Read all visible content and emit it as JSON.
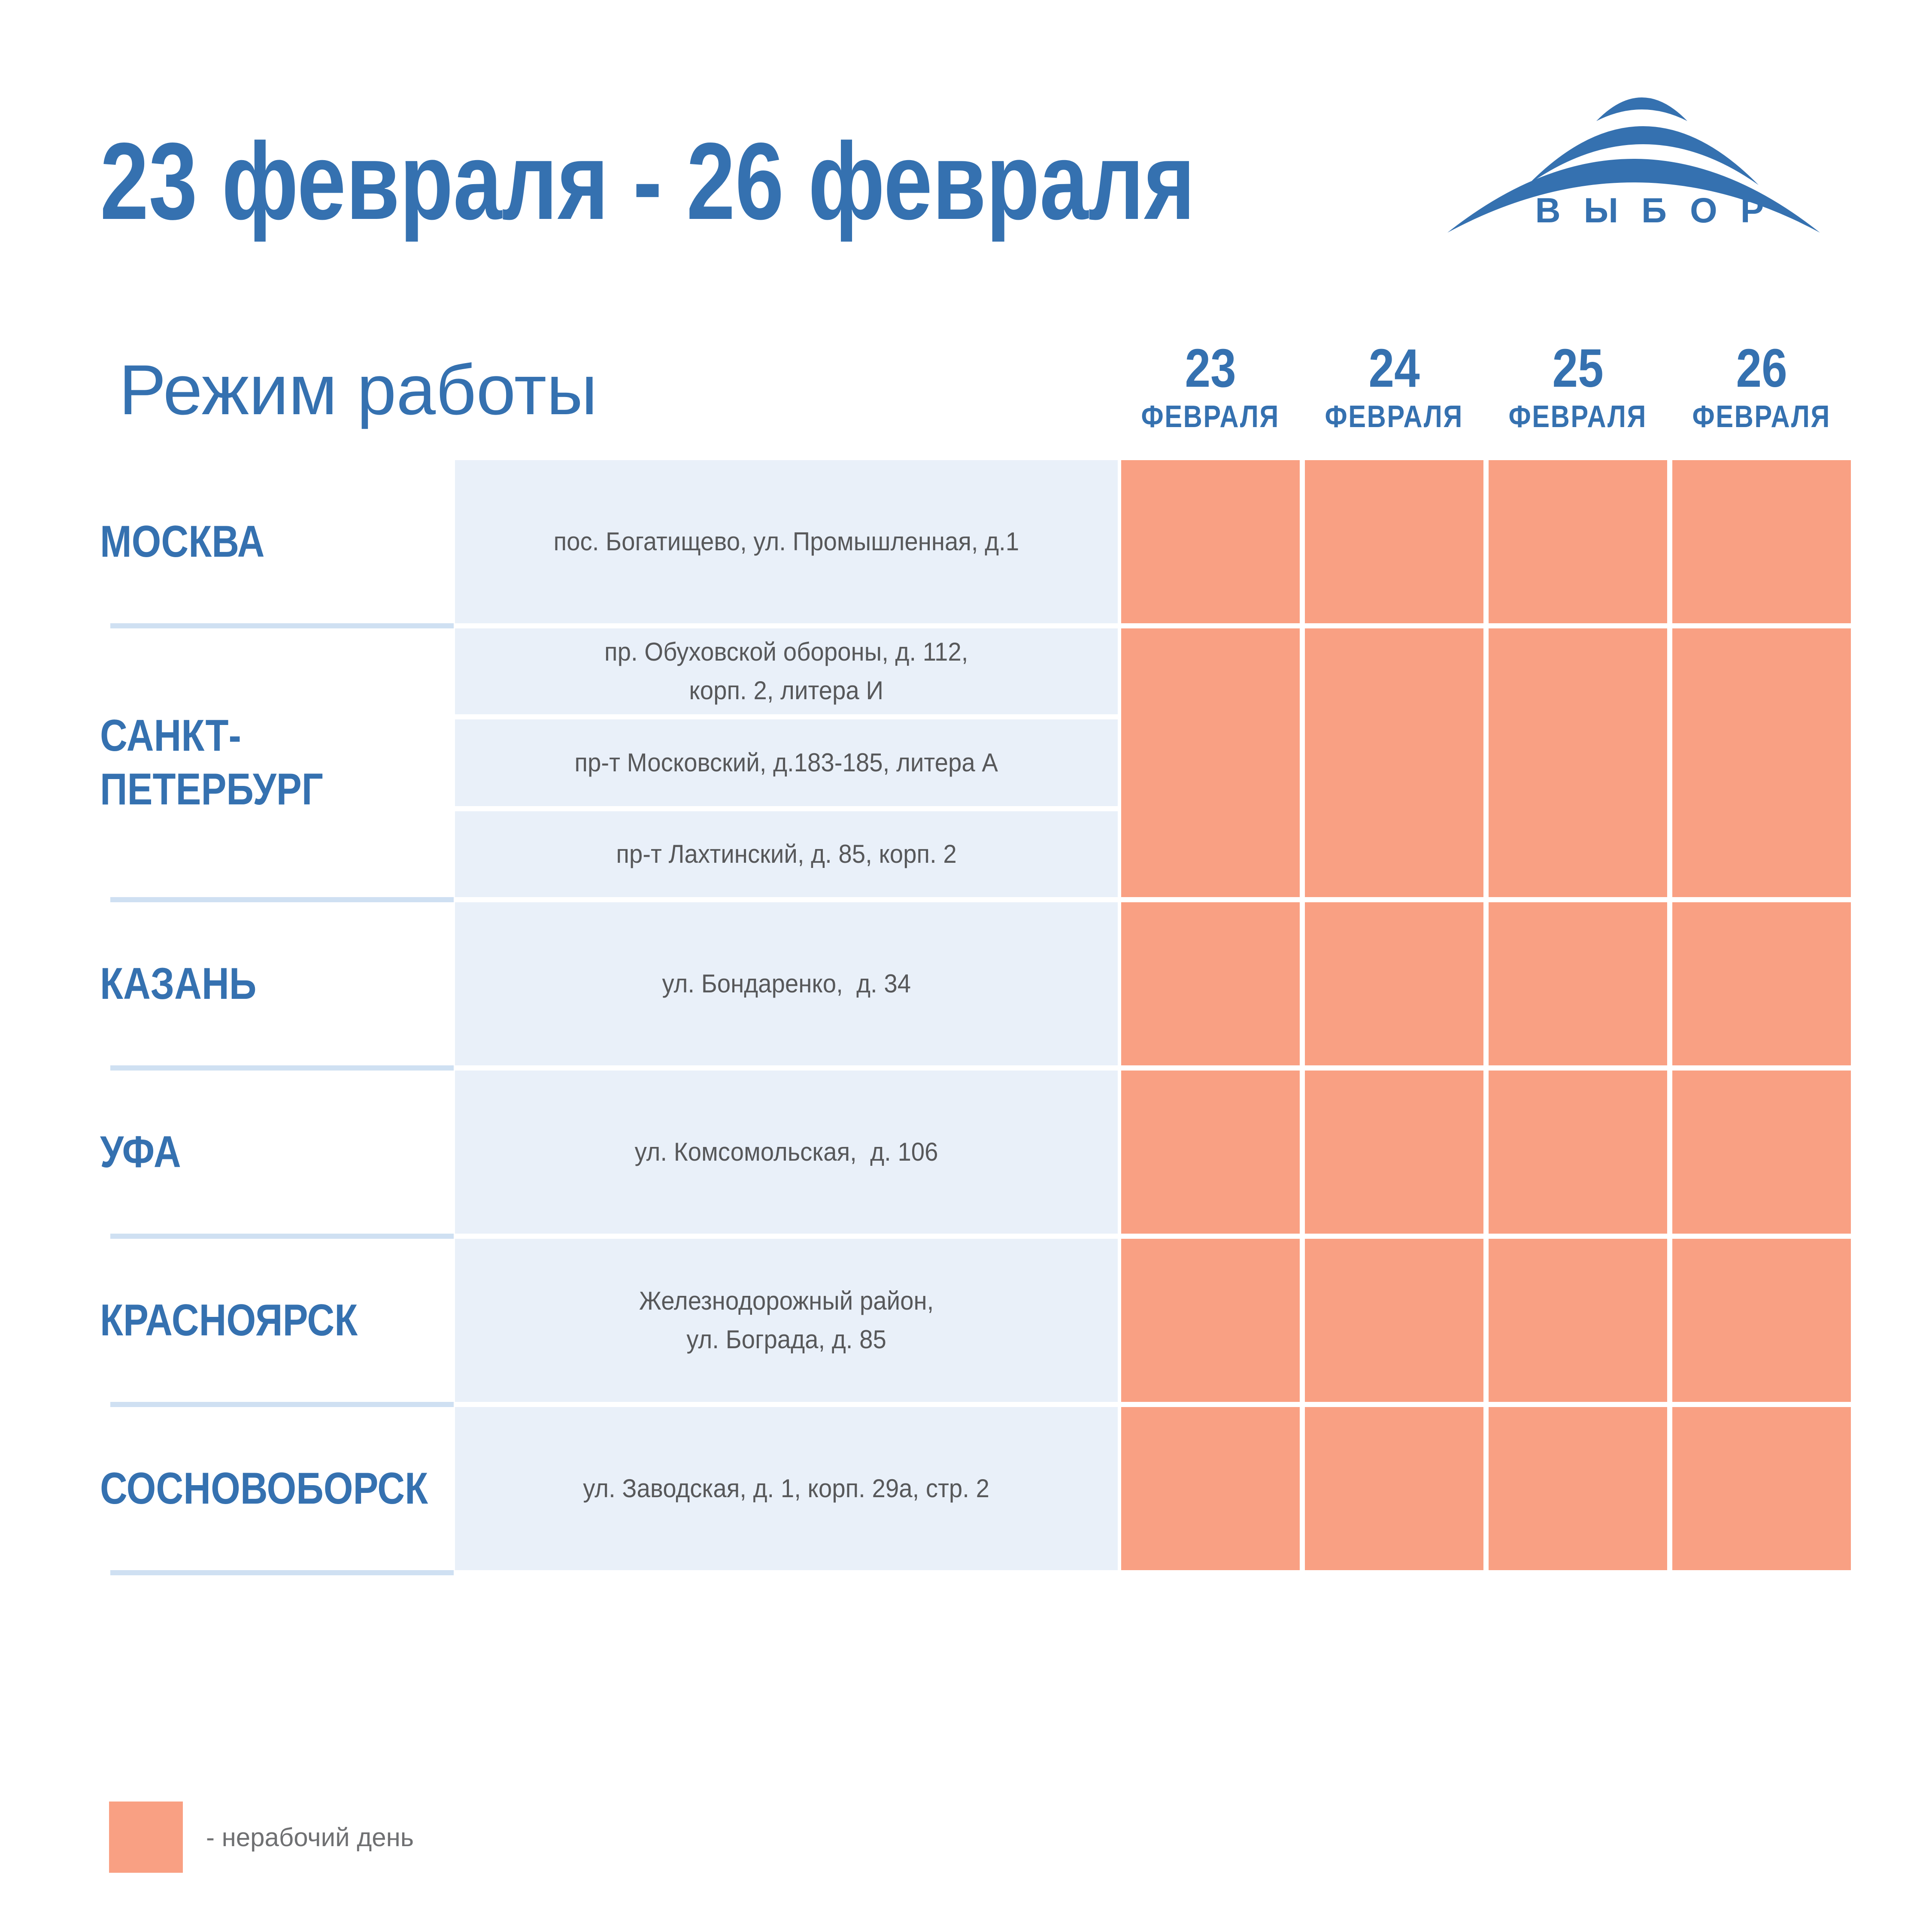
{
  "header": {
    "title": "23 февраля - 26 февраля"
  },
  "logo": {
    "brand": "ВЫБОР"
  },
  "schedule": {
    "section_title": "Режим работы",
    "day_columns": [
      {
        "day": "23",
        "month": "ФЕВРАЛЯ"
      },
      {
        "day": "24",
        "month": "ФЕВРАЛЯ"
      },
      {
        "day": "25",
        "month": "ФЕВРАЛЯ"
      },
      {
        "day": "26",
        "month": "ФЕВРАЛЯ"
      }
    ],
    "rows": [
      {
        "city": "МОСКВА",
        "addresses": [
          "пос. Богатищево, ул. Промышленная, д.1"
        ],
        "nonworking": [
          true,
          true,
          true,
          true
        ]
      },
      {
        "city": "САНКТ-\nПЕТЕРБУРГ",
        "addresses": [
          "пр. Обуховской обороны, д. 112,\nкорп. 2, литера И",
          "пр-т Московский, д.183-185, литера А",
          "пр-т Лахтинский, д. 85, корп. 2"
        ],
        "nonworking": [
          true,
          true,
          true,
          true
        ]
      },
      {
        "city": "КАЗАНЬ",
        "addresses": [
          "ул. Бондаренко,  д. 34"
        ],
        "nonworking": [
          true,
          true,
          true,
          true
        ]
      },
      {
        "city": "УФА",
        "addresses": [
          "ул. Комсомольская,  д. 106"
        ],
        "nonworking": [
          true,
          true,
          true,
          true
        ]
      },
      {
        "city": "КРАСНОЯРСК",
        "addresses": [
          "Железнодорожный район,\nул. Бограда, д. 85"
        ],
        "nonworking": [
          true,
          true,
          true,
          true
        ]
      },
      {
        "city": "СОСНОВОБОРСК",
        "addresses": [
          "ул. Заводская, д. 1, корп. 29а, стр. 2"
        ],
        "nonworking": [
          true,
          true,
          true,
          true
        ]
      }
    ]
  },
  "legend": {
    "label": "- нерабочий день"
  },
  "colors": {
    "accent_blue": "#3571b0",
    "orange": "#f9a083",
    "panel_blue": "#e9f0f9",
    "divider_blue": "#cfe0f2",
    "text_gray": "#57585a",
    "legend_gray": "#6f7072"
  }
}
